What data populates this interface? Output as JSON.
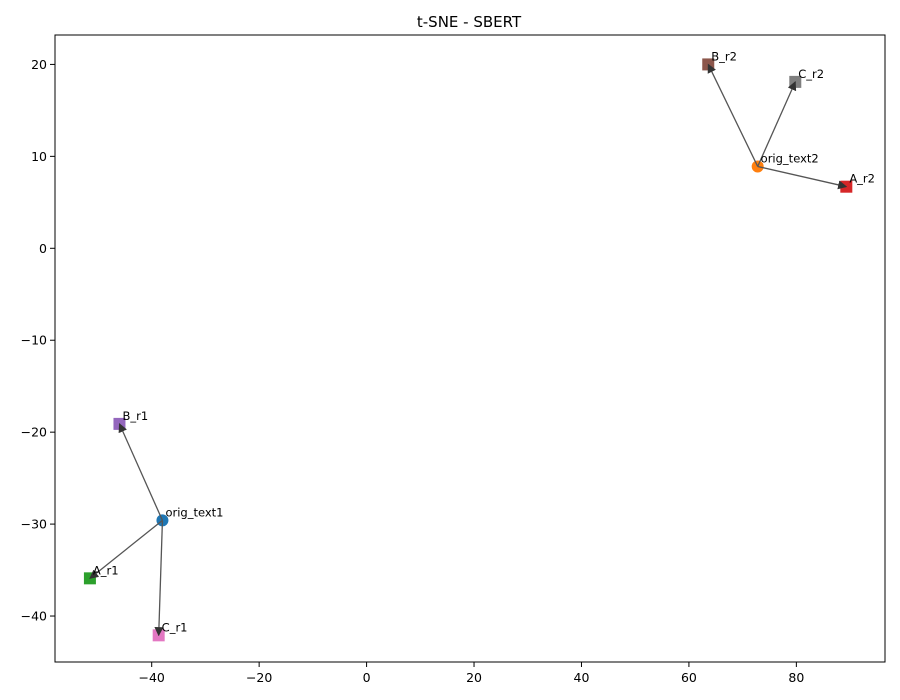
{
  "chart_data": {
    "type": "scatter",
    "title": "t-SNE - SBERT",
    "xlabel": "",
    "ylabel": "",
    "xlim": [
      -58,
      96.5
    ],
    "ylim": [
      -45,
      23.2
    ],
    "x_ticks": [
      -40,
      -20,
      0,
      20,
      40,
      60,
      80
    ],
    "y_ticks": [
      20,
      10,
      0,
      -10,
      -20,
      -30,
      -40
    ],
    "x_tick_labels": [
      "−40",
      "−20",
      "0",
      "20",
      "40",
      "60",
      "80"
    ],
    "y_tick_labels": [
      "20",
      "10",
      "0",
      "−10",
      "−20",
      "−30",
      "−40"
    ],
    "grid": false,
    "points": [
      {
        "label": "orig_text1",
        "x": -38.0,
        "y": -29.6,
        "marker": "circle",
        "color": "#1f77b4"
      },
      {
        "label": "orig_text2",
        "x": 72.8,
        "y": 8.9,
        "marker": "circle",
        "color": "#ff7f0e"
      },
      {
        "label": "A_r1",
        "x": -51.5,
        "y": -35.9,
        "marker": "square",
        "color": "#2ca02c"
      },
      {
        "label": "A_r2",
        "x": 89.3,
        "y": 6.7,
        "marker": "square",
        "color": "#d62728"
      },
      {
        "label": "B_r1",
        "x": -46.0,
        "y": -19.1,
        "marker": "square",
        "color": "#9467bd"
      },
      {
        "label": "B_r2",
        "x": 63.6,
        "y": 20.0,
        "marker": "square",
        "color": "#8c564b"
      },
      {
        "label": "C_r1",
        "x": -38.7,
        "y": -42.1,
        "marker": "square",
        "color": "#e377c2"
      },
      {
        "label": "C_r2",
        "x": 79.8,
        "y": 18.1,
        "marker": "square",
        "color": "#7f7f7f"
      }
    ],
    "arrows": [
      {
        "from": "orig_text1",
        "to": "A_r1"
      },
      {
        "from": "orig_text1",
        "to": "B_r1"
      },
      {
        "from": "orig_text1",
        "to": "C_r1"
      },
      {
        "from": "orig_text2",
        "to": "A_r2"
      },
      {
        "from": "orig_text2",
        "to": "B_r2"
      },
      {
        "from": "orig_text2",
        "to": "C_r2"
      }
    ],
    "arrow_color": "#555555"
  }
}
